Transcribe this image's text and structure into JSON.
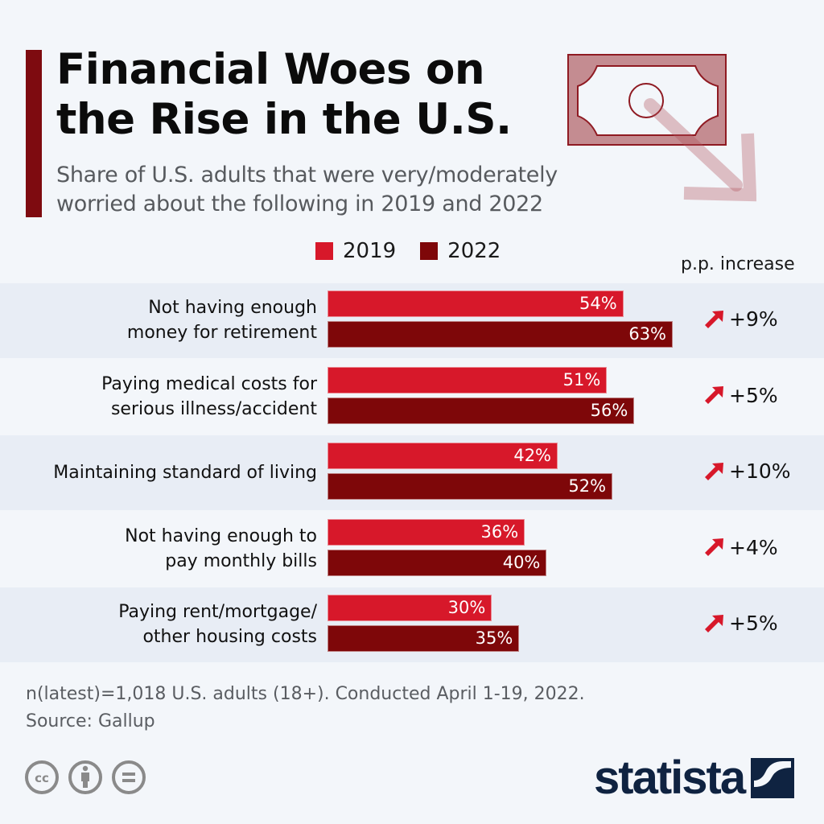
{
  "header": {
    "title_line1": "Financial Woes on",
    "title_line2": "the Rise in the U.S.",
    "subtitle_line1": "Share of U.S. adults that were very/moderately",
    "subtitle_line2": "worried about the following in 2019 and 2022",
    "illustration_icon": "dollar-bill-down-arrow-icon"
  },
  "colors": {
    "series_2019": "#d7182a",
    "series_2022": "#7e0709",
    "accent": "#7e0b10",
    "band_odd": "#e8edf5",
    "band_even": "#f3f6fa",
    "arrow": "#d7182a",
    "logo": "#0f2341"
  },
  "legend": {
    "items": [
      {
        "label": "2019",
        "color": "#d7182a"
      },
      {
        "label": "2022",
        "color": "#7e0709"
      }
    ]
  },
  "change_header": "p.p. increase",
  "chart_data": {
    "type": "bar",
    "orientation": "horizontal",
    "title": "Financial Woes on the Rise in the U.S.",
    "subtitle": "Share of U.S. adults that were very/moderately worried about the following in 2019 and 2022",
    "xlabel": "",
    "ylabel": "",
    "xlim": [
      0,
      100
    ],
    "grid": false,
    "legend_position": "top",
    "unit": "%",
    "categories": [
      "Not having enough\nmoney for retirement",
      "Paying medical costs for\nserious illness/accident",
      "Maintaining standard of living",
      "Not having enough to\npay monthly bills",
      "Paying rent/mortgage/\nother housing costs"
    ],
    "series": [
      {
        "name": "2019",
        "values": [
          54,
          51,
          42,
          36,
          30
        ],
        "labels": [
          "54%",
          "51%",
          "42%",
          "36%",
          "30%"
        ]
      },
      {
        "name": "2022",
        "values": [
          63,
          56,
          52,
          40,
          35
        ],
        "labels": [
          "63%",
          "56%",
          "52%",
          "40%",
          "35%"
        ]
      }
    ],
    "pp_increase": {
      "header": "p.p. increase",
      "values": [
        9,
        5,
        10,
        4,
        5
      ],
      "labels": [
        "+9%",
        "+5%",
        "+10%",
        "+4%",
        "+5%"
      ]
    }
  },
  "footer": {
    "note": "n(latest)=1,018 U.S. adults (18+). Conducted April 1-19, 2022.",
    "source": "Source: Gallup",
    "license_icons": [
      "creative-commons-icon",
      "attribution-icon",
      "no-derivatives-icon"
    ],
    "logo_text": "statista"
  }
}
